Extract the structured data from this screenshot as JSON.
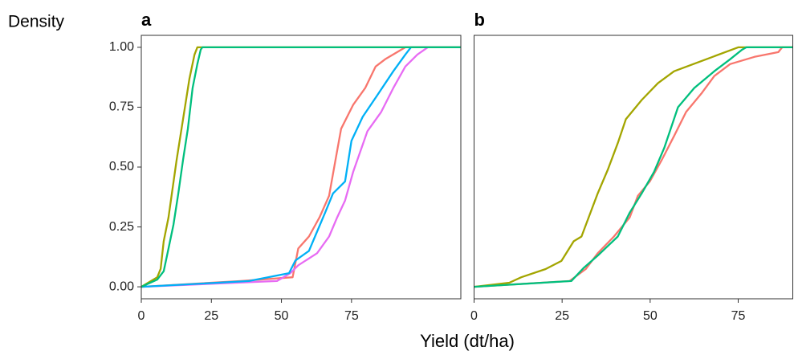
{
  "ylabel": "Density",
  "xlabel": "Yield (dt/ha)",
  "chart_data": [
    {
      "type": "line",
      "title": "a",
      "xlim": [
        0,
        114
      ],
      "ylim": [
        -0.05,
        1.05
      ],
      "xticks": [
        0,
        25,
        50,
        75
      ],
      "yticks": [
        {
          "value": 0,
          "label": "0.00"
        },
        {
          "value": 0.25,
          "label": "0.25"
        },
        {
          "value": 0.5,
          "label": "0.50"
        },
        {
          "value": 0.75,
          "label": "0.75"
        },
        {
          "value": 1,
          "label": "1.00"
        }
      ],
      "series": [
        {
          "color": "#f8766d",
          "x": [
            0,
            35.5,
            54,
            56,
            59.8,
            63.6,
            67,
            69.3,
            71.3,
            75.6,
            79.9,
            83.6,
            87,
            94.2,
            114
          ],
          "values": [
            0,
            0.024,
            0.04,
            0.16,
            0.21,
            0.29,
            0.38,
            0.53,
            0.66,
            0.76,
            0.83,
            0.92,
            0.95,
            1,
            1
          ]
        },
        {
          "color": "#e76bf3",
          "x": [
            0,
            48.4,
            53.2,
            56,
            62.7,
            67,
            69.9,
            72.7,
            75.6,
            80.7,
            85.6,
            89.9,
            94.2,
            98.5,
            102.2,
            114
          ],
          "values": [
            0,
            0.024,
            0.057,
            0.09,
            0.14,
            0.21,
            0.29,
            0.36,
            0.48,
            0.65,
            0.73,
            0.83,
            0.92,
            0.97,
            1,
            1
          ]
        },
        {
          "color": "#00b0f6",
          "x": [
            0,
            38.4,
            52.7,
            55,
            59.8,
            62.7,
            65.6,
            68.4,
            72.7,
            75,
            79,
            84.2,
            89.9,
            94.2,
            96.2,
            114
          ],
          "values": [
            0,
            0.024,
            0.057,
            0.11,
            0.15,
            0.23,
            0.31,
            0.39,
            0.44,
            0.61,
            0.71,
            0.8,
            0.9,
            0.97,
            1,
            1
          ]
        },
        {
          "color": "#a3a500",
          "x": [
            0,
            5.7,
            6.9,
            8,
            9.7,
            10.9,
            12.6,
            14.9,
            17.2,
            19,
            20,
            114
          ],
          "values": [
            0,
            0.04,
            0.075,
            0.19,
            0.29,
            0.39,
            0.53,
            0.7,
            0.87,
            0.97,
            1,
            1
          ]
        },
        {
          "color": "#00bf7d",
          "x": [
            0,
            5.7,
            8,
            9.7,
            11.5,
            13.2,
            14.9,
            16.6,
            18.3,
            20,
            21.2,
            21.8,
            114
          ],
          "values": [
            0,
            0.03,
            0.065,
            0.16,
            0.26,
            0.39,
            0.53,
            0.66,
            0.83,
            0.93,
            0.99,
            1,
            1
          ]
        }
      ]
    },
    {
      "type": "line",
      "title": "b",
      "xlim": [
        0,
        90.5
      ],
      "ylim": [
        -0.05,
        1.05
      ],
      "xticks": [
        0,
        25,
        50,
        75
      ],
      "series": [
        {
          "color": "#f8766d",
          "x": [
            0,
            27.1,
            31.7,
            35.1,
            39.7,
            44.2,
            46.5,
            49.9,
            53.3,
            56.8,
            60.2,
            64.7,
            68.2,
            72.7,
            79.6,
            86.4,
            87.5,
            90.5
          ],
          "values": [
            0,
            0.024,
            0.074,
            0.14,
            0.21,
            0.29,
            0.38,
            0.44,
            0.53,
            0.63,
            0.73,
            0.81,
            0.88,
            0.93,
            0.96,
            0.98,
            1,
            1
          ]
        },
        {
          "color": "#a3a500",
          "x": [
            0,
            10,
            13.4,
            20.3,
            24.8,
            28.3,
            30.5,
            32.8,
            35.1,
            38,
            40.8,
            43.1,
            47.6,
            52.2,
            56.8,
            65.9,
            75,
            90.5
          ],
          "values": [
            0,
            0.017,
            0.04,
            0.074,
            0.108,
            0.19,
            0.21,
            0.3,
            0.39,
            0.49,
            0.6,
            0.7,
            0.78,
            0.85,
            0.9,
            0.95,
            1,
            1
          ]
        },
        {
          "color": "#00bf7d",
          "x": [
            0,
            27.6,
            31.2,
            35.1,
            40.8,
            44.2,
            47.6,
            51.1,
            54,
            57.9,
            62.5,
            68.2,
            72.7,
            76.1,
            77.3,
            90.5
          ],
          "values": [
            0,
            0.024,
            0.08,
            0.13,
            0.21,
            0.31,
            0.39,
            0.48,
            0.58,
            0.75,
            0.83,
            0.9,
            0.95,
            0.99,
            1,
            1
          ]
        }
      ]
    }
  ]
}
